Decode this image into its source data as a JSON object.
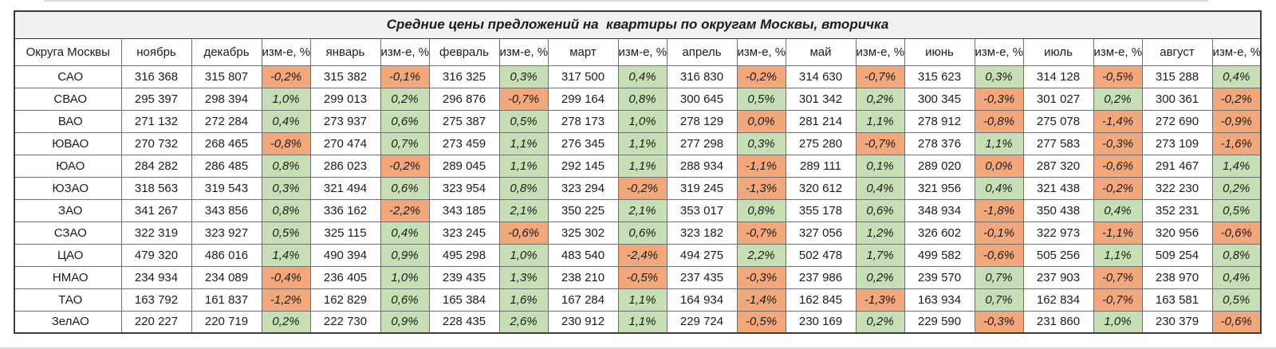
{
  "colors": {
    "positive_bg": "#c6dfb4",
    "negative_bg": "#f3a87b",
    "title_bg": "#f0f0f0",
    "border_inner": "#6f6f6f",
    "border_outer": "#3d3d3d"
  },
  "chart_data": {
    "type": "table",
    "title": "Средние цены предложений на  квартиры по округам Москвы, вторичка",
    "region_column_header": "Округа Москвы",
    "change_column_header": "изм-е, %",
    "months": [
      "ноябрь",
      "декабрь",
      "январь",
      "февраль",
      "март",
      "апрель",
      "май",
      "июнь",
      "июль",
      "август"
    ],
    "note": "prices[i] corresponds to months[i]; changes[i-1] is the percent change shown right after months[i] (no change column after the first month)",
    "rows": [
      {
        "region": "САО",
        "prices": [
          "316 368",
          "315 807",
          "315 382",
          "316 325",
          "317 500",
          "316 830",
          "314 630",
          "315 623",
          "314 128",
          "315 288"
        ],
        "changes": [
          "-0,2%",
          "-0,1%",
          "0,3%",
          "0,4%",
          "-0,2%",
          "-0,7%",
          "0,3%",
          "-0,5%",
          "0,4%"
        ]
      },
      {
        "region": "СВАО",
        "prices": [
          "295 397",
          "298 394",
          "299 013",
          "296 876",
          "299 164",
          "300 645",
          "301 342",
          "300 345",
          "301 027",
          "300 361"
        ],
        "changes": [
          "1,0%",
          "0,2%",
          "-0,7%",
          "0,8%",
          "0,5%",
          "0,2%",
          "-0,3%",
          "0,2%",
          "-0,2%"
        ]
      },
      {
        "region": "ВАО",
        "prices": [
          "271 132",
          "272 284",
          "273 937",
          "275 387",
          "278 173",
          "278 129",
          "281 214",
          "278 912",
          "275 078",
          "272 690"
        ],
        "changes": [
          "0,4%",
          "0,6%",
          "0,5%",
          "1,0%",
          "0,0%",
          "1,1%",
          "-0,8%",
          "-1,4%",
          "-0,9%"
        ]
      },
      {
        "region": "ЮВАО",
        "prices": [
          "270 732",
          "268 465",
          "270 474",
          "273 459",
          "276 345",
          "277 298",
          "275 280",
          "278 376",
          "277 583",
          "273 109"
        ],
        "changes": [
          "-0,8%",
          "0,7%",
          "1,1%",
          "1,1%",
          "0,3%",
          "-0,7%",
          "1,1%",
          "-0,3%",
          "-1,6%"
        ]
      },
      {
        "region": "ЮАО",
        "prices": [
          "284 282",
          "286 485",
          "286 023",
          "289 045",
          "292 145",
          "288 934",
          "289 111",
          "289 020",
          "287 320",
          "291 467"
        ],
        "changes": [
          "0,8%",
          "-0,2%",
          "1,1%",
          "1,1%",
          "-1,1%",
          "0,1%",
          "0,0%",
          "-0,6%",
          "1,4%"
        ]
      },
      {
        "region": "ЮЗАО",
        "prices": [
          "318 563",
          "319 543",
          "321 494",
          "323 954",
          "323 294",
          "319 245",
          "320 612",
          "321 956",
          "321 438",
          "322 230"
        ],
        "changes": [
          "0,3%",
          "0,6%",
          "0,8%",
          "-0,2%",
          "-1,3%",
          "0,4%",
          "0,4%",
          "-0,2%",
          "0,2%"
        ]
      },
      {
        "region": "ЗАО",
        "prices": [
          "341 267",
          "343 856",
          "336 162",
          "343 185",
          "350 225",
          "353 017",
          "355 178",
          "348 934",
          "350 438",
          "352 231"
        ],
        "changes": [
          "0,8%",
          "-2,2%",
          "2,1%",
          "2,1%",
          "0,8%",
          "0,6%",
          "-1,8%",
          "0,4%",
          "0,5%"
        ]
      },
      {
        "region": "СЗАО",
        "prices": [
          "322 319",
          "323 927",
          "325 115",
          "323 245",
          "325 302",
          "323 182",
          "327 056",
          "326 602",
          "322 973",
          "320 956"
        ],
        "changes": [
          "0,5%",
          "0,4%",
          "-0,6%",
          "0,6%",
          "-0,7%",
          "1,2%",
          "-0,1%",
          "-1,1%",
          "-0,6%"
        ]
      },
      {
        "region": "ЦАО",
        "prices": [
          "479 320",
          "486 016",
          "490 394",
          "495 298",
          "483 540",
          "494 275",
          "502 478",
          "499 582",
          "505 256",
          "509 254"
        ],
        "changes": [
          "1,4%",
          "0,9%",
          "1,0%",
          "-2,4%",
          "2,2%",
          "1,7%",
          "-0,6%",
          "1,1%",
          "0,8%"
        ]
      },
      {
        "region": "НМАО",
        "prices": [
          "234 934",
          "234 089",
          "236 405",
          "239 435",
          "238 210",
          "237 435",
          "237 986",
          "239 570",
          "237 903",
          "238 970"
        ],
        "changes": [
          "-0,4%",
          "1,0%",
          "1,3%",
          "-0,5%",
          "-0,3%",
          "0,2%",
          "0,7%",
          "-0,7%",
          "0,4%"
        ]
      },
      {
        "region": "ТАО",
        "prices": [
          "163 792",
          "161 837",
          "162 829",
          "165 384",
          "167 284",
          "164 934",
          "162 845",
          "163 934",
          "162 834",
          "163 581"
        ],
        "changes": [
          "-1,2%",
          "0,6%",
          "1,6%",
          "1,1%",
          "-1,4%",
          "-1,3%",
          "0,7%",
          "-0,7%",
          "0,5%"
        ]
      },
      {
        "region": "ЗелАО",
        "prices": [
          "220 227",
          "220 719",
          "222 730",
          "228 435",
          "230 912",
          "229 724",
          "230 169",
          "229 590",
          "231 860",
          "230 379"
        ],
        "changes": [
          "0,2%",
          "0,9%",
          "2,6%",
          "1,1%",
          "-0,5%",
          "0,2%",
          "-0,3%",
          "1,0%",
          "-0,6%"
        ]
      }
    ]
  }
}
